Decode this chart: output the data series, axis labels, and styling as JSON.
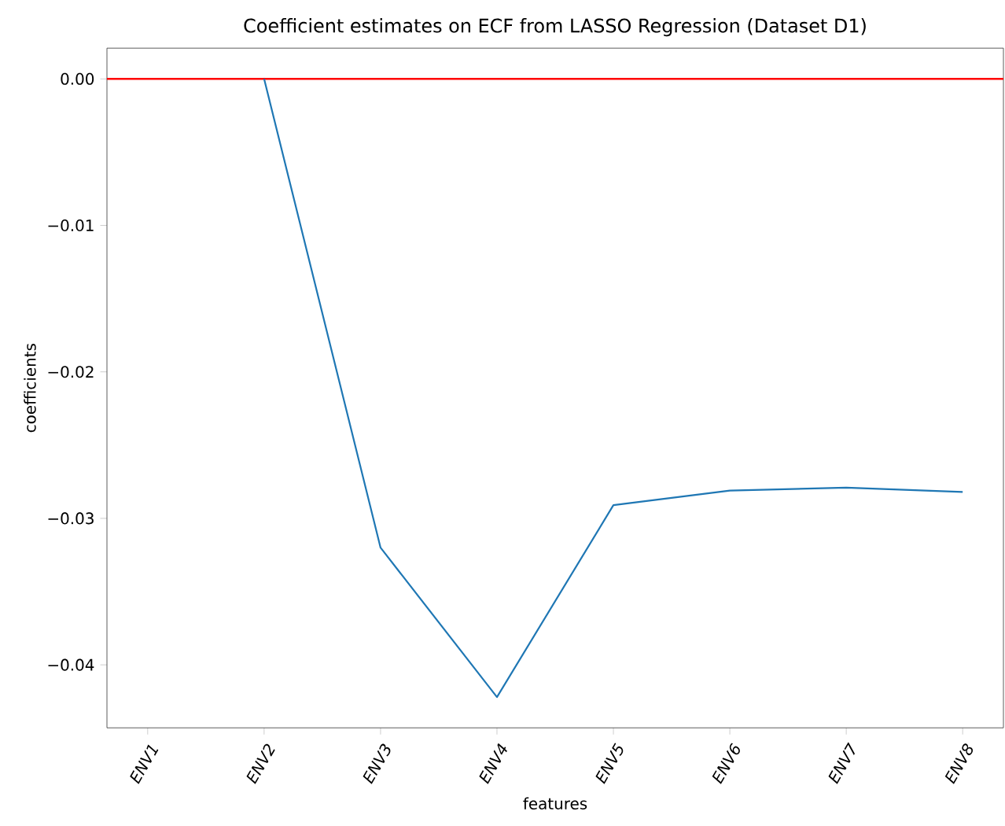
{
  "chart_data": {
    "type": "line",
    "title": "Coefficient estimates on ECF from LASSO Regression (Dataset D1)",
    "xlabel": "features",
    "ylabel": "coefficients",
    "categories": [
      "ENV1",
      "ENV2",
      "ENV3",
      "ENV4",
      "ENV5",
      "ENV6",
      "ENV7",
      "ENV8"
    ],
    "series": [
      {
        "color": "#1f77b4",
        "values": [
          null,
          0.0,
          -0.032,
          -0.0422,
          -0.0291,
          -0.0281,
          -0.0279,
          -0.0282
        ]
      }
    ],
    "ylim": [
      -0.0443,
      0.0021
    ],
    "yticks": [
      {
        "value": 0,
        "label": "0.00"
      },
      {
        "value": -0.01,
        "label": "−0.01"
      },
      {
        "value": -0.02,
        "label": "−0.02"
      },
      {
        "value": -0.03,
        "label": "−0.03"
      },
      {
        "value": -0.04,
        "label": "−0.04"
      }
    ],
    "ref_lines": [
      {
        "axis": "y",
        "value": 0,
        "color": "#ff0000"
      }
    ],
    "grid": false
  }
}
